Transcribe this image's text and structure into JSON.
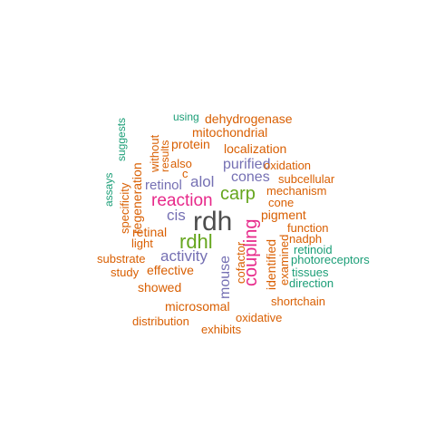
{
  "colors": {
    "dark_gray": "#4d4d4d",
    "green": "#66a61e",
    "magenta": "#e7298a",
    "purple": "#7570b3",
    "orange": "#d95f02",
    "teal": "#1b9e77"
  },
  "words": [
    {
      "text": "rdh",
      "color": "dark_gray",
      "rotated": false
    },
    {
      "text": "coupling",
      "color": "magenta",
      "rotated": true
    },
    {
      "text": "rdhl",
      "color": "green",
      "rotated": false
    },
    {
      "text": "carp",
      "color": "green",
      "rotated": false
    },
    {
      "text": "reaction",
      "color": "magenta",
      "rotated": false
    },
    {
      "text": "mouse",
      "color": "purple",
      "rotated": true
    },
    {
      "text": "activity",
      "color": "purple",
      "rotated": false
    },
    {
      "text": "alol",
      "color": "purple",
      "rotated": false
    },
    {
      "text": "purified",
      "color": "purple",
      "rotated": false
    },
    {
      "text": "cis",
      "color": "purple",
      "rotated": false
    },
    {
      "text": "retinol",
      "color": "purple",
      "rotated": false
    },
    {
      "text": "cones",
      "color": "purple",
      "rotated": false
    },
    {
      "text": "identified",
      "color": "orange",
      "rotated": true
    },
    {
      "text": "pigment",
      "color": "orange",
      "rotated": false
    },
    {
      "text": "mitochondrial",
      "color": "orange",
      "rotated": false
    },
    {
      "text": "localization",
      "color": "orange",
      "rotated": false
    },
    {
      "text": "dehydrogenase",
      "color": "orange",
      "rotated": false
    },
    {
      "text": "protein",
      "color": "orange",
      "rotated": false
    },
    {
      "text": "oxidation",
      "color": "orange",
      "rotated": false
    },
    {
      "text": "subcellular",
      "color": "orange",
      "rotated": false
    },
    {
      "text": "mechanism",
      "color": "orange",
      "rotated": false
    },
    {
      "text": "cone",
      "color": "orange",
      "rotated": false
    },
    {
      "text": "function",
      "color": "orange",
      "rotated": false
    },
    {
      "text": "nadph",
      "color": "orange",
      "rotated": false
    },
    {
      "text": "regeneration",
      "color": "orange",
      "rotated": true
    },
    {
      "text": "specificity",
      "color": "orange",
      "rotated": true
    },
    {
      "text": "retinal",
      "color": "orange",
      "rotated": false
    },
    {
      "text": "light",
      "color": "orange",
      "rotated": false
    },
    {
      "text": "substrate",
      "color": "orange",
      "rotated": false
    },
    {
      "text": "study",
      "color": "orange",
      "rotated": false
    },
    {
      "text": "effective",
      "color": "orange",
      "rotated": false
    },
    {
      "text": "showed",
      "color": "orange",
      "rotated": false
    },
    {
      "text": "microsomal",
      "color": "orange",
      "rotated": false
    },
    {
      "text": "distribution",
      "color": "orange",
      "rotated": false
    },
    {
      "text": "exhibits",
      "color": "orange",
      "rotated": false
    },
    {
      "text": "oxidative",
      "color": "orange",
      "rotated": false
    },
    {
      "text": "shortchain",
      "color": "orange",
      "rotated": false
    },
    {
      "text": "cofactor",
      "color": "orange",
      "rotated": true
    },
    {
      "text": "examined",
      "color": "orange",
      "rotated": true
    },
    {
      "text": "without",
      "color": "orange",
      "rotated": true
    },
    {
      "text": "results",
      "color": "orange",
      "rotated": true
    },
    {
      "text": "also",
      "color": "orange",
      "rotated": false
    },
    {
      "text": "c",
      "color": "orange",
      "rotated": false
    },
    {
      "text": "suggests",
      "color": "teal",
      "rotated": true
    },
    {
      "text": "assays",
      "color": "teal",
      "rotated": true
    },
    {
      "text": "using",
      "color": "teal",
      "rotated": false
    },
    {
      "text": "retinoid",
      "color": "teal",
      "rotated": false
    },
    {
      "text": "photoreceptors",
      "color": "teal",
      "rotated": false
    },
    {
      "text": "tissues",
      "color": "teal",
      "rotated": false
    },
    {
      "text": "direction",
      "color": "teal",
      "rotated": false
    }
  ]
}
